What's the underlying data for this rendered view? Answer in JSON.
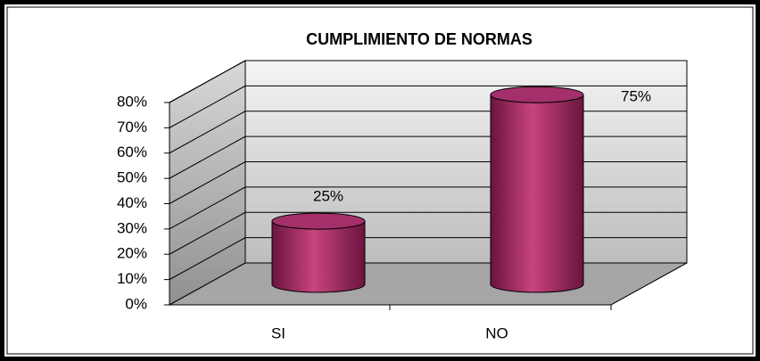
{
  "chart_data": {
    "type": "bar3d",
    "title": "CUMPLIMIENTO DE NORMAS",
    "categories": [
      "SI",
      "NO"
    ],
    "values": [
      25,
      75
    ],
    "value_labels": [
      "25%",
      "75%"
    ],
    "color": "#a8306a",
    "ylim": [
      0,
      80
    ],
    "yticks": [
      {
        "value": 0,
        "label": "0%"
      },
      {
        "value": 10,
        "label": "10%"
      },
      {
        "value": 20,
        "label": "20%"
      },
      {
        "value": 30,
        "label": "30%"
      },
      {
        "value": 40,
        "label": "40%"
      },
      {
        "value": 50,
        "label": "50%"
      },
      {
        "value": 60,
        "label": "60%"
      },
      {
        "value": 70,
        "label": "70%"
      },
      {
        "value": 80,
        "label": "80%"
      }
    ],
    "grid": true
  }
}
